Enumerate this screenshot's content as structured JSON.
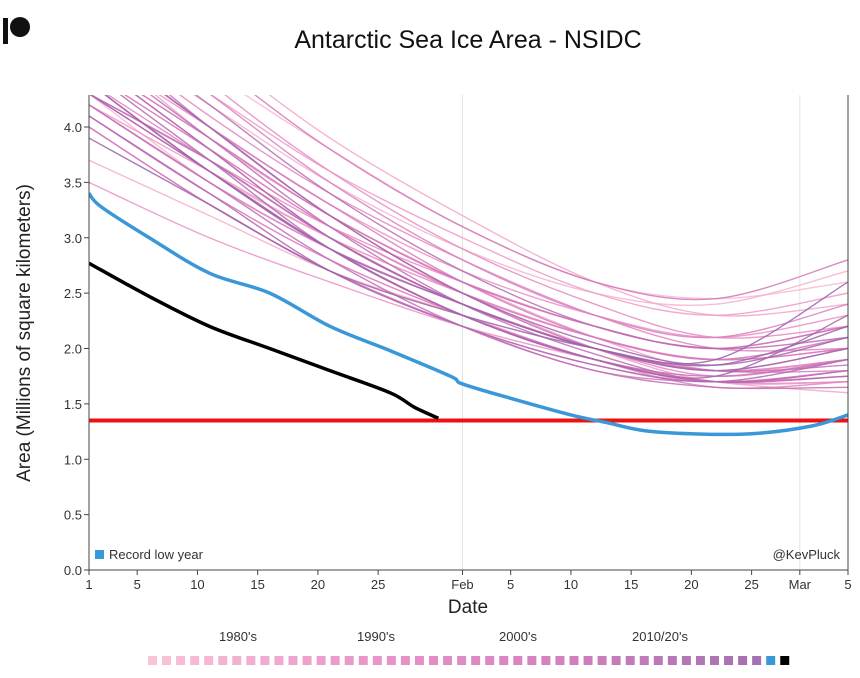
{
  "chart_data": {
    "type": "line",
    "title": "Antarctic Sea Ice Area - NSIDC",
    "xlabel": "Date",
    "ylabel": "Area (Millions of square kilometers)",
    "ylim": [
      0,
      4.3
    ],
    "xlim_days": [
      0,
      63
    ],
    "yticks": [
      "0.0",
      "0.5",
      "1.0",
      "1.5",
      "2.0",
      "2.5",
      "3.0",
      "3.5",
      "4.0"
    ],
    "xticks": [
      {
        "day": 0,
        "label": "1"
      },
      {
        "day": 4,
        "label": "5"
      },
      {
        "day": 9,
        "label": "10"
      },
      {
        "day": 14,
        "label": "15"
      },
      {
        "day": 19,
        "label": "20"
      },
      {
        "day": 24,
        "label": "25"
      },
      {
        "day": 31,
        "label": "Feb"
      },
      {
        "day": 35,
        "label": "5"
      },
      {
        "day": 40,
        "label": "10"
      },
      {
        "day": 45,
        "label": "15"
      },
      {
        "day": 50,
        "label": "20"
      },
      {
        "day": 55,
        "label": "25"
      },
      {
        "day": 59,
        "label": "Mar"
      },
      {
        "day": 63,
        "label": "5"
      }
    ],
    "vgrid_days": [
      31,
      59
    ],
    "legend_label": "Record low year",
    "credit": "@KevPluck",
    "record_line": {
      "value": 1.35,
      "color": "#ee1111"
    },
    "record_low_year": {
      "color": "#3a98d8",
      "days": [
        0,
        1,
        5,
        10,
        15,
        20,
        25,
        30,
        31,
        35,
        40,
        43,
        46,
        50,
        55,
        60,
        63
      ],
      "values": [
        3.4,
        3.28,
        3.0,
        2.68,
        2.5,
        2.2,
        1.98,
        1.75,
        1.68,
        1.55,
        1.4,
        1.33,
        1.26,
        1.23,
        1.23,
        1.3,
        1.4
      ]
    },
    "current_year": {
      "color": "#000000",
      "days": [
        0,
        5,
        10,
        15,
        20,
        25,
        27,
        29
      ],
      "values": [
        2.77,
        2.47,
        2.2,
        2.0,
        1.8,
        1.6,
        1.47,
        1.37
      ]
    },
    "knot_days": [
      0,
      10,
      20,
      31,
      42,
      52,
      63
    ],
    "gradient": [
      "#f9bcd3",
      "#e98cc4",
      "#cf73b8",
      "#9a62a8"
    ],
    "historical_series": [
      [
        4.6,
        3.9,
        3.2,
        2.6,
        2.2,
        2.0,
        2.2
      ],
      [
        5.2,
        4.5,
        3.8,
        3.1,
        2.6,
        2.45,
        2.6
      ],
      [
        4.3,
        3.5,
        2.9,
        2.4,
        2.0,
        1.8,
        1.9
      ],
      [
        4.9,
        4.2,
        3.5,
        2.9,
        2.5,
        2.4,
        2.7
      ],
      [
        3.7,
        3.2,
        2.7,
        2.3,
        1.9,
        1.7,
        1.8
      ],
      [
        4.4,
        3.6,
        3.0,
        2.5,
        2.1,
        1.9,
        2.1
      ],
      [
        5.5,
        4.7,
        3.9,
        3.2,
        2.6,
        2.3,
        2.4
      ],
      [
        4.1,
        3.4,
        2.8,
        2.3,
        1.9,
        1.7,
        1.6
      ],
      [
        4.8,
        3.9,
        3.2,
        2.6,
        2.1,
        1.8,
        1.9
      ],
      [
        4.5,
        3.8,
        3.1,
        2.5,
        2.0,
        1.7,
        1.7
      ],
      [
        5.0,
        4.3,
        3.6,
        3.0,
        2.5,
        2.3,
        2.5
      ],
      [
        4.2,
        3.6,
        3.0,
        2.5,
        2.1,
        1.9,
        2.0
      ],
      [
        3.5,
        3.0,
        2.6,
        2.2,
        1.9,
        1.7,
        1.7
      ],
      [
        4.7,
        4.0,
        3.3,
        2.7,
        2.3,
        2.1,
        2.3
      ],
      [
        4.3,
        3.7,
        3.1,
        2.6,
        2.2,
        2.0,
        2.2
      ],
      [
        5.3,
        4.4,
        3.6,
        2.9,
        2.4,
        2.1,
        2.2
      ],
      [
        4.0,
        3.3,
        2.7,
        2.2,
        1.85,
        1.7,
        1.8
      ],
      [
        4.6,
        3.8,
        3.0,
        2.4,
        2.0,
        1.75,
        1.9
      ],
      [
        4.9,
        4.1,
        3.4,
        2.8,
        2.3,
        2.0,
        2.0
      ],
      [
        4.4,
        3.7,
        3.0,
        2.4,
        2.0,
        1.8,
        1.9
      ],
      [
        4.1,
        3.4,
        2.8,
        2.3,
        1.9,
        1.65,
        1.7
      ],
      [
        5.1,
        4.3,
        3.5,
        2.8,
        2.3,
        2.1,
        2.4
      ],
      [
        4.5,
        3.8,
        3.1,
        2.5,
        2.1,
        1.9,
        2.1
      ],
      [
        4.2,
        3.5,
        2.9,
        2.4,
        2.0,
        1.8,
        1.8
      ],
      [
        4.8,
        4.0,
        3.3,
        2.6,
        2.1,
        1.9,
        2.0
      ],
      [
        4.3,
        3.6,
        2.9,
        2.3,
        1.9,
        1.7,
        1.8
      ],
      [
        5.4,
        4.6,
        3.8,
        3.1,
        2.6,
        2.45,
        2.8
      ],
      [
        4.0,
        3.3,
        2.7,
        2.2,
        1.8,
        1.7,
        1.75
      ],
      [
        4.6,
        3.9,
        3.2,
        2.6,
        2.2,
        2.0,
        2.2
      ],
      [
        4.4,
        3.6,
        2.9,
        2.3,
        1.9,
        1.75,
        1.9
      ],
      [
        4.9,
        4.0,
        3.2,
        2.5,
        2.0,
        1.8,
        1.85
      ],
      [
        4.2,
        3.5,
        2.8,
        2.2,
        1.8,
        1.65,
        1.65
      ],
      [
        4.7,
        3.9,
        3.1,
        2.4,
        1.95,
        1.7,
        1.8
      ],
      [
        4.3,
        3.7,
        3.0,
        2.4,
        2.0,
        1.8,
        2.0
      ],
      [
        5.0,
        4.2,
        3.4,
        2.7,
        2.2,
        2.0,
        2.1
      ],
      [
        4.5,
        3.7,
        2.9,
        2.3,
        1.9,
        1.7,
        1.75
      ],
      [
        4.1,
        3.4,
        2.7,
        2.2,
        1.85,
        1.7,
        1.9
      ],
      [
        4.6,
        3.8,
        3.0,
        2.4,
        2.0,
        1.8,
        2.0
      ],
      [
        4.3,
        3.6,
        2.9,
        2.3,
        1.9,
        1.75,
        2.3
      ],
      [
        4.8,
        4.0,
        3.2,
        2.5,
        2.05,
        1.85,
        2.1
      ],
      [
        4.4,
        3.6,
        2.9,
        2.4,
        2.0,
        1.9,
        2.6
      ],
      [
        3.9,
        3.3,
        2.7,
        2.3,
        2.0,
        1.85,
        2.2
      ]
    ],
    "decade_legend": {
      "labels": [
        "1980's",
        "1990's",
        "2000's",
        "2010/20's"
      ],
      "year_swatches": 44
    }
  }
}
